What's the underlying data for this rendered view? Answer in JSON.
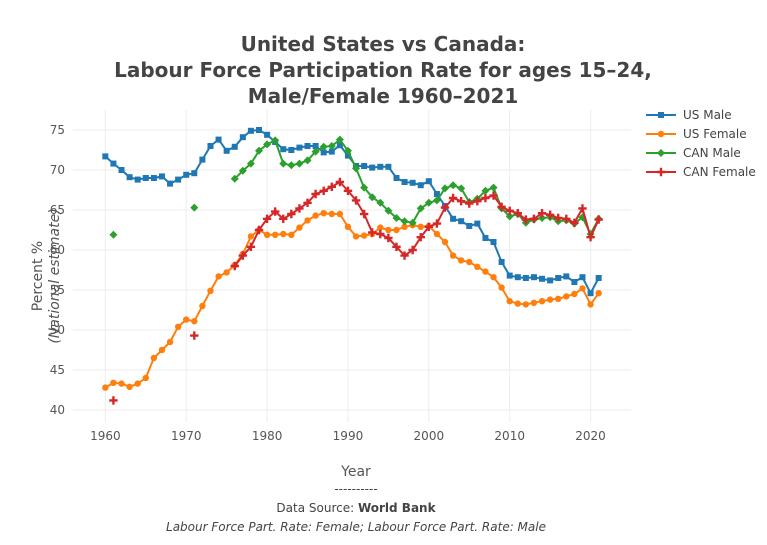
{
  "chart_data": {
    "type": "line",
    "title_lines": [
      "United States vs Canada:",
      "Labour Force Participation Rate for ages 15–24,",
      "Male/Female 1960–2021"
    ],
    "xlabel": "Year",
    "ylabel_line1": "Percent %",
    "ylabel_line2": "(National estimate)",
    "xlim": [
      1956,
      2025
    ],
    "ylim": [
      38.5,
      77.5
    ],
    "xticks": [
      1960,
      1970,
      1980,
      1990,
      2000,
      2010,
      2020
    ],
    "yticks": [
      40,
      45,
      50,
      55,
      60,
      65,
      70,
      75
    ],
    "grid": true,
    "legend_position": "top-right",
    "footer": {
      "separator": "----------",
      "source_prefix": "Data Source: ",
      "source_name": "World Bank",
      "indicators": "Labour Force Part. Rate: Female; Labour Force Part. Rate: Male"
    },
    "series": [
      {
        "name": "US Male",
        "color": "#1f77b4",
        "marker": "square",
        "x": [
          1960,
          1961,
          1962,
          1963,
          1964,
          1965,
          1966,
          1967,
          1968,
          1969,
          1970,
          1971,
          1972,
          1973,
          1974,
          1975,
          1976,
          1977,
          1978,
          1979,
          1980,
          1981,
          1982,
          1983,
          1984,
          1985,
          1986,
          1987,
          1988,
          1989,
          1990,
          1991,
          1992,
          1993,
          1994,
          1995,
          1996,
          1997,
          1998,
          1999,
          2000,
          2001,
          2002,
          2003,
          2004,
          2005,
          2006,
          2007,
          2008,
          2009,
          2010,
          2011,
          2012,
          2013,
          2014,
          2015,
          2016,
          2017,
          2018,
          2019,
          2020,
          2021
        ],
        "y": [
          71.7,
          70.8,
          70.0,
          69.1,
          68.8,
          69.0,
          69.0,
          69.2,
          68.3,
          68.8,
          69.4,
          69.6,
          71.3,
          73.0,
          73.8,
          72.4,
          72.9,
          74.1,
          74.9,
          75.0,
          74.4,
          73.5,
          72.6,
          72.5,
          72.8,
          73.0,
          73.0,
          72.2,
          72.3,
          73.1,
          71.8,
          70.5,
          70.5,
          70.3,
          70.4,
          70.4,
          69.0,
          68.5,
          68.4,
          68.1,
          68.6,
          67.0,
          65.5,
          63.9,
          63.6,
          63.0,
          63.3,
          61.5,
          61.0,
          58.5,
          56.8,
          56.6,
          56.5,
          56.6,
          56.4,
          56.2,
          56.5,
          56.7,
          56.0,
          56.6,
          54.6,
          56.5
        ]
      },
      {
        "name": "US Female",
        "color": "#ff7f0e",
        "marker": "circle",
        "x": [
          1960,
          1961,
          1962,
          1963,
          1964,
          1965,
          1966,
          1967,
          1968,
          1969,
          1970,
          1971,
          1972,
          1973,
          1974,
          1975,
          1976,
          1977,
          1978,
          1979,
          1980,
          1981,
          1982,
          1983,
          1984,
          1985,
          1986,
          1987,
          1988,
          1989,
          1990,
          1991,
          1992,
          1993,
          1994,
          1995,
          1996,
          1997,
          1998,
          1999,
          2000,
          2001,
          2002,
          2003,
          2004,
          2005,
          2006,
          2007,
          2008,
          2009,
          2010,
          2011,
          2012,
          2013,
          2014,
          2015,
          2016,
          2017,
          2018,
          2019,
          2020,
          2021
        ],
        "y": [
          42.8,
          43.4,
          43.3,
          42.9,
          43.3,
          44.0,
          46.5,
          47.5,
          48.5,
          50.4,
          51.3,
          51.1,
          53.0,
          54.9,
          56.7,
          57.2,
          58.1,
          59.5,
          61.7,
          62.5,
          61.9,
          61.9,
          62.0,
          61.9,
          62.8,
          63.7,
          64.3,
          64.6,
          64.5,
          64.5,
          62.9,
          61.7,
          61.8,
          62.0,
          62.8,
          62.5,
          62.5,
          62.9,
          63.1,
          62.9,
          63.0,
          62.0,
          61.0,
          59.3,
          58.7,
          58.5,
          57.9,
          57.3,
          56.6,
          55.3,
          53.6,
          53.3,
          53.2,
          53.4,
          53.6,
          53.8,
          53.9,
          54.2,
          54.5,
          55.2,
          53.2,
          54.6
        ]
      },
      {
        "name": "CAN Male",
        "color": "#2ca02c",
        "marker": "diamond",
        "x": [
          1961,
          null,
          1971,
          null,
          1976,
          1977,
          1978,
          1979,
          1980,
          1981,
          1982,
          1983,
          1984,
          1985,
          1986,
          1987,
          1988,
          1989,
          1990,
          1991,
          1992,
          1993,
          1994,
          1995,
          1996,
          1997,
          1998,
          1999,
          2000,
          2001,
          2002,
          2003,
          2004,
          2005,
          2006,
          2007,
          2008,
          2009,
          2010,
          2011,
          2012,
          2013,
          2014,
          2015,
          2016,
          2017,
          2018,
          2019,
          2020,
          2021
        ],
        "y": [
          61.9,
          null,
          65.3,
          null,
          68.9,
          69.9,
          70.8,
          72.4,
          73.2,
          73.7,
          70.8,
          70.6,
          70.8,
          71.2,
          72.3,
          72.9,
          73.0,
          73.8,
          72.4,
          70.2,
          67.8,
          66.6,
          65.9,
          64.9,
          64.0,
          63.6,
          63.4,
          65.2,
          65.9,
          66.2,
          67.7,
          68.1,
          67.7,
          66.0,
          66.4,
          67.4,
          67.8,
          65.2,
          64.2,
          64.5,
          63.4,
          63.8,
          64.0,
          64.1,
          63.6,
          63.7,
          63.3,
          64.1,
          62.0,
          63.9
        ]
      },
      {
        "name": "CAN Female",
        "color": "#d62728",
        "marker": "cross",
        "x": [
          1961,
          null,
          1971,
          null,
          1976,
          1977,
          1978,
          1979,
          1980,
          1981,
          1982,
          1983,
          1984,
          1985,
          1986,
          1987,
          1988,
          1989,
          1990,
          1991,
          1992,
          1993,
          1994,
          1995,
          1996,
          1997,
          1998,
          1999,
          2000,
          2001,
          2002,
          2003,
          2004,
          2005,
          2006,
          2007,
          2008,
          2009,
          2010,
          2011,
          2012,
          2013,
          2014,
          2015,
          2016,
          2017,
          2018,
          2019,
          2020,
          2021
        ],
        "y": [
          41.2,
          null,
          49.3,
          null,
          58.0,
          59.3,
          60.4,
          62.5,
          63.9,
          64.8,
          63.9,
          64.5,
          65.2,
          65.9,
          67.0,
          67.4,
          67.9,
          68.5,
          67.4,
          66.2,
          64.5,
          62.2,
          62.0,
          61.5,
          60.4,
          59.3,
          60.0,
          61.6,
          62.9,
          63.3,
          65.3,
          66.5,
          66.1,
          65.8,
          66.1,
          66.5,
          66.8,
          65.4,
          64.9,
          64.6,
          63.8,
          63.9,
          64.6,
          64.4,
          64.0,
          63.9,
          63.4,
          65.2,
          61.6,
          63.8
        ]
      }
    ]
  }
}
